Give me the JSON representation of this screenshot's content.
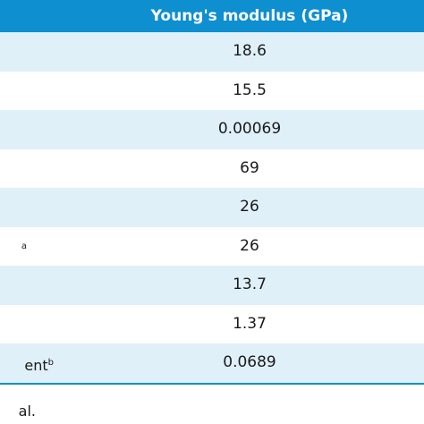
{
  "header": {
    "title": "Young's modulus (GPa)"
  },
  "rows": [
    {
      "label_tail": "",
      "label_sup": "",
      "value": "18.6"
    },
    {
      "label_tail": "",
      "label_sup": "",
      "value": "15.5"
    },
    {
      "label_tail": "",
      "label_sup": "",
      "value": "0.00069"
    },
    {
      "label_tail": "",
      "label_sup": "",
      "value": "69"
    },
    {
      "label_tail": "",
      "label_sup": "",
      "value": "26"
    },
    {
      "label_tail": "",
      "label_sup": "a",
      "value": "26"
    },
    {
      "label_tail": "",
      "label_sup": "",
      "value": "13.7"
    },
    {
      "label_tail": "",
      "label_sup": "",
      "value": "1.37"
    },
    {
      "label_tail": "ent",
      "label_sup": "b",
      "value": "0.0689"
    }
  ],
  "footnote": {
    "text": "al."
  },
  "colors": {
    "header_bg": "#0e8fd0",
    "stripe": "#dff0f9"
  }
}
